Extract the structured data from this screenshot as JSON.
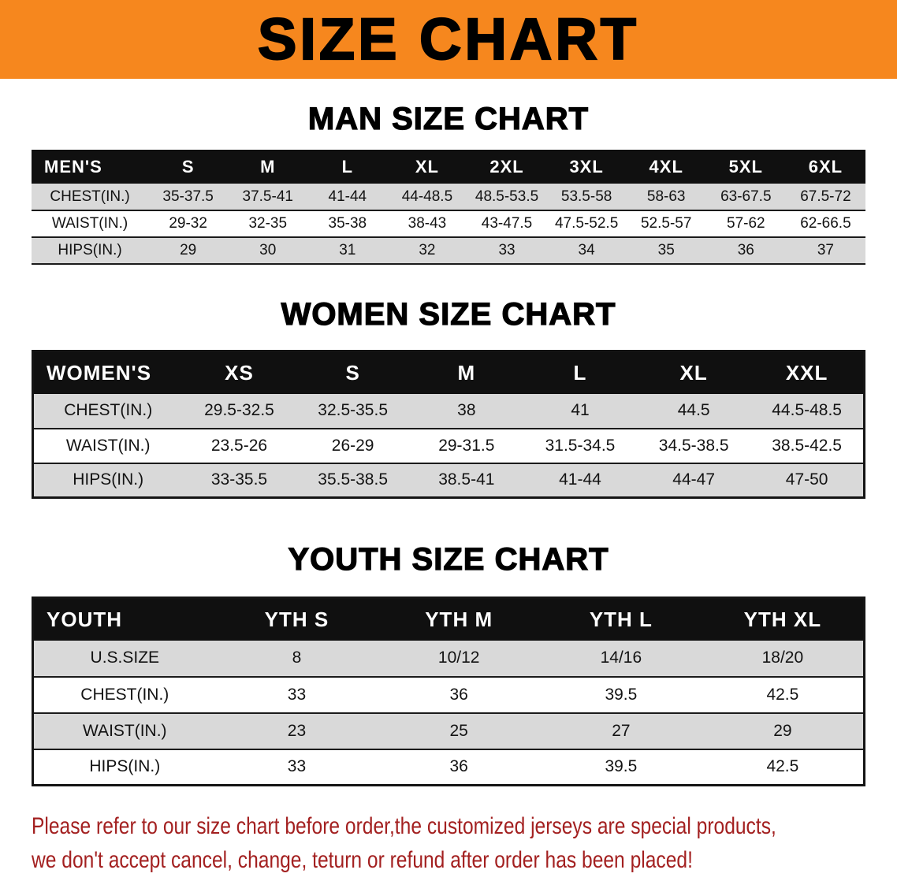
{
  "colors": {
    "banner-bg": "#f6871e",
    "header-bg": "#101010",
    "stripe": "#d9d9d9",
    "note-red": "#a32020"
  },
  "banner": {
    "title": "SIZE CHART"
  },
  "sections": [
    {
      "heading": "MAN SIZE CHART",
      "table": {
        "header": [
          "MEN'S",
          "S",
          "M",
          "L",
          "XL",
          "2XL",
          "3XL",
          "4XL",
          "5XL",
          "6XL"
        ],
        "rows": [
          [
            "CHEST(IN.)",
            "35-37.5",
            "37.5-41",
            "41-44",
            "44-48.5",
            "48.5-53.5",
            "53.5-58",
            "58-63",
            "63-67.5",
            "67.5-72"
          ],
          [
            "WAIST(IN.)",
            "29-32",
            "32-35",
            "35-38",
            "38-43",
            "43-47.5",
            "47.5-52.5",
            "52.5-57",
            "57-62",
            "62-66.5"
          ],
          [
            "HIPS(IN.)",
            "29",
            "30",
            "31",
            "32",
            "33",
            "34",
            "35",
            "36",
            "37"
          ]
        ]
      }
    },
    {
      "heading": "WOMEN SIZE CHART",
      "table": {
        "header": [
          "WOMEN'S",
          "XS",
          "S",
          "M",
          "L",
          "XL",
          "XXL"
        ],
        "rows": [
          [
            "CHEST(IN.)",
            "29.5-32.5",
            "32.5-35.5",
            "38",
            "41",
            "44.5",
            "44.5-48.5"
          ],
          [
            "WAIST(IN.)",
            "23.5-26",
            "26-29",
            "29-31.5",
            "31.5-34.5",
            "34.5-38.5",
            "38.5-42.5"
          ],
          [
            "HIPS(IN.)",
            "33-35.5",
            "35.5-38.5",
            "38.5-41",
            "41-44",
            "44-47",
            "47-50"
          ]
        ]
      }
    },
    {
      "heading": "YOUTH SIZE CHART",
      "table": {
        "header": [
          "YOUTH",
          "YTH S",
          "YTH M",
          "YTH L",
          "YTH XL"
        ],
        "rows": [
          [
            "U.S.SIZE",
            "8",
            "10/12",
            "14/16",
            "18/20"
          ],
          [
            "CHEST(IN.)",
            "33",
            "36",
            "39.5",
            "42.5"
          ],
          [
            "WAIST(IN.)",
            "23",
            "25",
            "27",
            "29"
          ],
          [
            "HIPS(IN.)",
            "33",
            "36",
            "39.5",
            "42.5"
          ]
        ]
      }
    }
  ],
  "note": {
    "line1": "Please refer to our size chart before order,the customized jerseys are special products,",
    "line2": "we don't accept cancel, change, teturn or refund after order has been placed!"
  }
}
